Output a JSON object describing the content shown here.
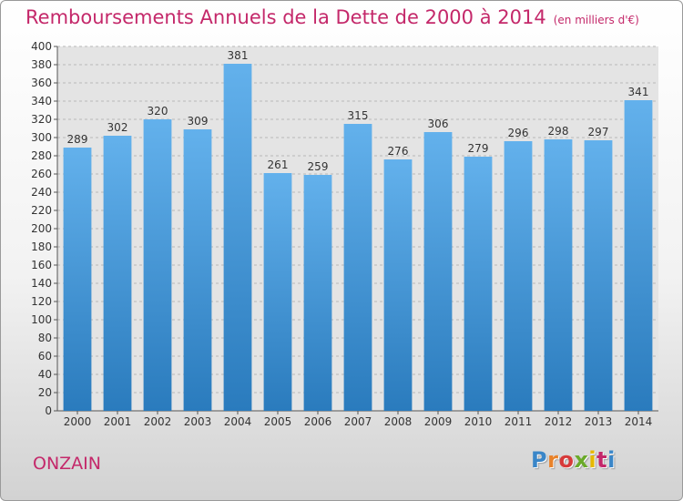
{
  "title": "Remboursements Annuels de la Dette de 2000 à 2014",
  "subtitle": "(en milliers d'€)",
  "commune": "ONZAIN",
  "logo": {
    "letters": [
      "P",
      "r",
      "o",
      "x",
      "i",
      "t",
      "i"
    ],
    "colors": [
      "#3a86c8",
      "#e8822a",
      "#d73a3a",
      "#6aaa2a",
      "#e6b800",
      "#c4286a",
      "#3a86c8"
    ]
  },
  "colors": {
    "title": "#c4286a",
    "bar_light": "#63b1ec",
    "bar_dark": "#2a7bbd",
    "grid": "#b8b8b8"
  },
  "chart_data": {
    "type": "bar",
    "categories": [
      "2000",
      "2001",
      "2002",
      "2003",
      "2004",
      "2005",
      "2006",
      "2007",
      "2008",
      "2009",
      "2010",
      "2011",
      "2012",
      "2013",
      "2014"
    ],
    "values": [
      289,
      302,
      320,
      309,
      381,
      261,
      259,
      315,
      276,
      306,
      279,
      296,
      298,
      297,
      341
    ],
    "ylim": [
      0,
      400
    ],
    "yticks": [
      0,
      20,
      40,
      60,
      80,
      100,
      120,
      140,
      160,
      180,
      200,
      220,
      240,
      260,
      280,
      300,
      320,
      340,
      360,
      380,
      400
    ],
    "grid": true
  }
}
